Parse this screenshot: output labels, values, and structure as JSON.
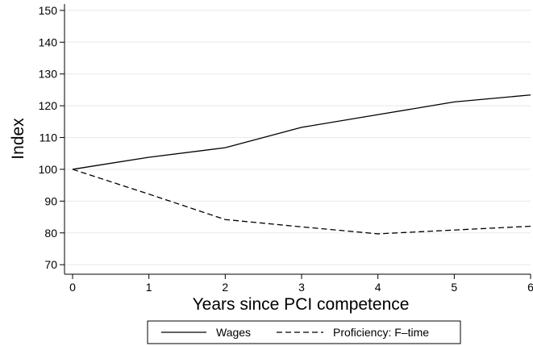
{
  "chart_data": {
    "type": "line",
    "xlabel": "Years since PCI competence",
    "ylabel": "Index",
    "xlim": [
      0,
      6
    ],
    "ylim": [
      67,
      152
    ],
    "xticks": [
      "0",
      "1",
      "2",
      "3",
      "4",
      "5",
      "6"
    ],
    "yticks": [
      "70",
      "80",
      "90",
      "100",
      "110",
      "120",
      "130",
      "140",
      "150"
    ],
    "x": [
      0,
      1,
      2,
      3,
      4,
      5,
      6
    ],
    "grid": "horizontal",
    "legend_position": "bottom",
    "series": [
      {
        "name": "Wages",
        "style": "solid",
        "values": [
          100,
          103.8,
          106.8,
          113.2,
          117.2,
          121.2,
          123.4
        ]
      },
      {
        "name": "Proficiency: F–time",
        "style": "dashed",
        "values": [
          100,
          92.2,
          84.2,
          81.9,
          79.7,
          80.9,
          82.1
        ]
      }
    ],
    "colors": {
      "line": "#000000",
      "grid": "#e8e8e8"
    }
  }
}
